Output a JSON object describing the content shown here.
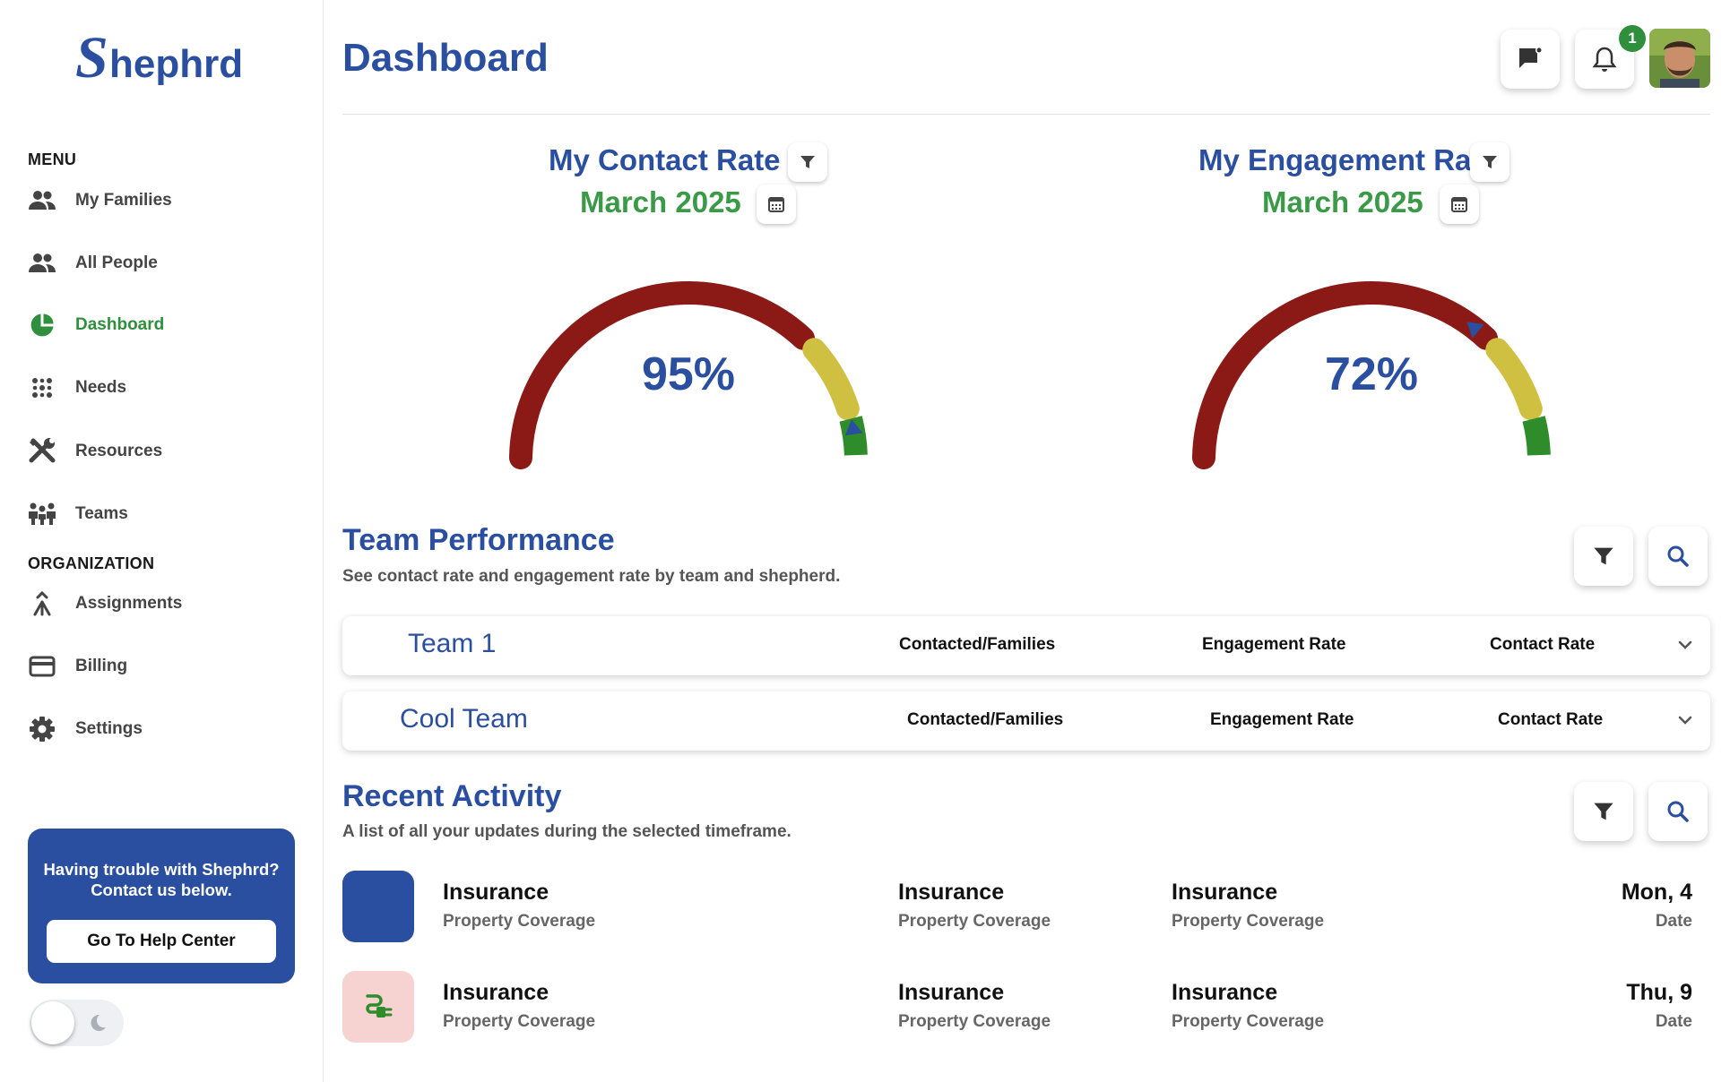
{
  "brand": {
    "name": "Shephrd",
    "color": "#2a4ea0"
  },
  "sidebar": {
    "menu_title": "MENU",
    "org_title": "ORGANIZATION",
    "items": [
      {
        "label": "My Families",
        "icon": "people-icon"
      },
      {
        "label": "All People",
        "icon": "people-icon"
      },
      {
        "label": "Dashboard",
        "icon": "pie-chart-icon",
        "active": true
      },
      {
        "label": "Needs",
        "icon": "dots-grid-icon"
      },
      {
        "label": "Resources",
        "icon": "tools-icon"
      },
      {
        "label": "Teams",
        "icon": "team-icon"
      }
    ],
    "org_items": [
      {
        "label": "Assignments",
        "icon": "merge-icon"
      },
      {
        "label": "Billing",
        "icon": "credit-card-icon"
      },
      {
        "label": "Settings",
        "icon": "gear-icon"
      }
    ],
    "help": {
      "text": "Having trouble with Shephrd? Contact us below.",
      "button": "Go To Help Center"
    },
    "theme_toggle": {
      "mode": "light",
      "icon": "moon-icon"
    }
  },
  "header": {
    "title": "Dashboard",
    "notification_count": "1",
    "icons": [
      "flag-message-icon",
      "bell-icon",
      "avatar"
    ]
  },
  "gauges": [
    {
      "title": "My Contact Rate",
      "period": "March 2025",
      "value": "95%",
      "percent": 95,
      "icons": [
        "filter-icon",
        "calendar-icon"
      ]
    },
    {
      "title": "My Engagement Rate",
      "period": "March 2025",
      "value": "72%",
      "percent": 72,
      "icons": [
        "filter-icon",
        "calendar-icon"
      ]
    }
  ],
  "gauge_colors": {
    "low": "#8b1a17",
    "mid": "#cfc042",
    "high": "#2f8c2a",
    "marker": "#2a4ea0"
  },
  "team_performance": {
    "title": "Team Performance",
    "description": "See contact rate and engagement rate by team and shepherd.",
    "teams": [
      {
        "name": "Team 1",
        "col1": "Contacted/Families",
        "col2": "Engagement Rate",
        "col3": "Contact Rate"
      },
      {
        "name": "Cool Team",
        "col1": "Contacted/Families",
        "col2": "Engagement Rate",
        "col3": "Contact Rate"
      }
    ]
  },
  "recent_activity": {
    "title": "Recent Activity",
    "description": "A list of all your updates during the selected timeframe.",
    "rows": [
      {
        "thumb_color": "#2a4ea0",
        "thumb_icon": "",
        "c1": "Insurance",
        "c1s": "Property Coverage",
        "c2": "Insurance",
        "c2s": "Property Coverage",
        "c3": "Insurance",
        "c3s": "Property Coverage",
        "date": "Mon, 4",
        "date_label": "Date"
      },
      {
        "thumb_color": "#f6d2d0",
        "thumb_icon": "plug-icon",
        "c1": "Insurance",
        "c1s": "Property Coverage",
        "c2": "Insurance",
        "c2s": "Property Coverage",
        "c3": "Insurance",
        "c3s": "Property Coverage",
        "date": "Thu, 9",
        "date_label": "Date"
      }
    ]
  }
}
